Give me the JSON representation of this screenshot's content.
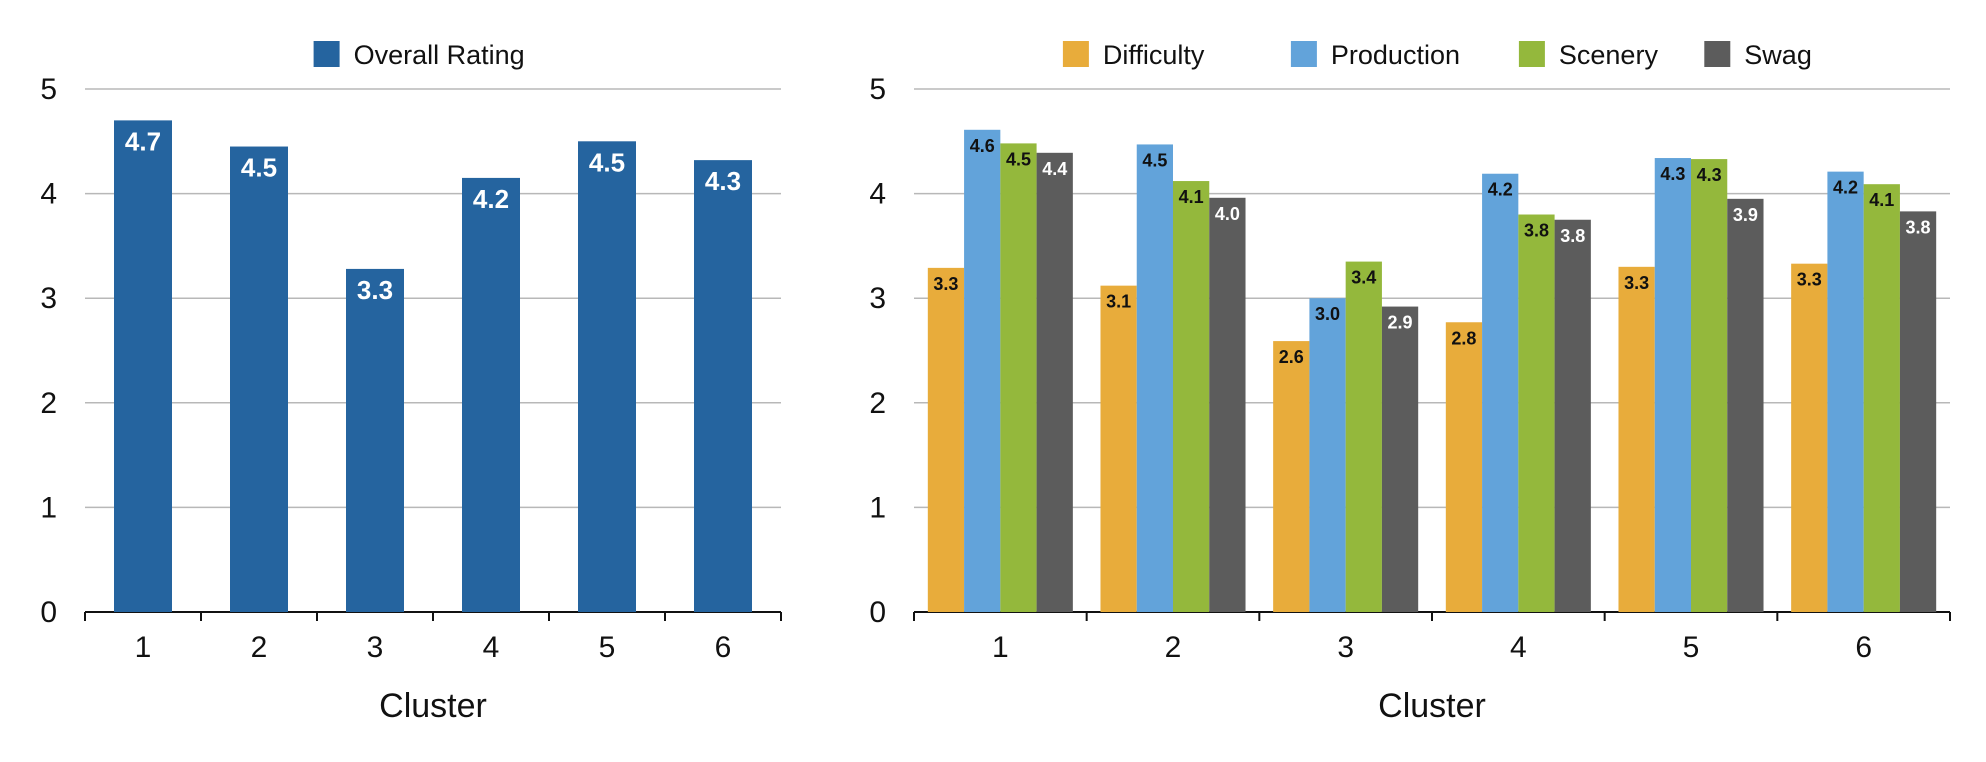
{
  "chart_data": [
    {
      "type": "bar",
      "categories": [
        "1",
        "2",
        "3",
        "4",
        "5",
        "6"
      ],
      "series": [
        {
          "name": "Overall Rating",
          "values": [
            4.7,
            4.45,
            3.28,
            4.15,
            4.5,
            4.32
          ],
          "labels": [
            "4.7",
            "4.5",
            "3.3",
            "4.2",
            "4.5",
            "4.3"
          ],
          "color": "#25649f",
          "label_color": "#ffffff"
        }
      ],
      "title": "",
      "xlabel": "Cluster",
      "ylabel": "",
      "ylim": [
        0,
        5
      ],
      "yticks": [
        "0",
        "1",
        "2",
        "3",
        "4",
        "5"
      ],
      "grid": true,
      "legend": "top-center"
    },
    {
      "type": "bar",
      "categories": [
        "1",
        "2",
        "3",
        "4",
        "5",
        "6"
      ],
      "series": [
        {
          "name": "Difficulty",
          "values": [
            3.29,
            3.12,
            2.59,
            2.77,
            3.3,
            3.33
          ],
          "labels": [
            "3.3",
            "3.1",
            "2.6",
            "2.8",
            "3.3",
            "3.3"
          ],
          "color": "#e8ac3b",
          "label_color": "#111111"
        },
        {
          "name": "Production",
          "values": [
            4.61,
            4.47,
            3.0,
            4.19,
            4.34,
            4.21
          ],
          "labels": [
            "4.6",
            "4.5",
            "3.0",
            "4.2",
            "4.3",
            "4.2"
          ],
          "color": "#62a3da",
          "label_color": "#111111"
        },
        {
          "name": "Scenery",
          "values": [
            4.48,
            4.12,
            3.35,
            3.8,
            4.33,
            4.09
          ],
          "labels": [
            "4.5",
            "4.1",
            "3.4",
            "3.8",
            "4.3",
            "4.1"
          ],
          "color": "#94b83c",
          "label_color": "#111111"
        },
        {
          "name": "Swag",
          "values": [
            4.39,
            3.96,
            2.92,
            3.75,
            3.95,
            3.83
          ],
          "labels": [
            "4.4",
            "4.0",
            "2.9",
            "3.8",
            "3.9",
            "3.8"
          ],
          "color": "#5c5c5c",
          "label_color": "#ffffff"
        }
      ],
      "title": "",
      "xlabel": "Cluster",
      "ylabel": "",
      "ylim": [
        0,
        5
      ],
      "yticks": [
        "0",
        "1",
        "2",
        "3",
        "4",
        "5"
      ],
      "grid": true,
      "legend": "top-center"
    }
  ]
}
